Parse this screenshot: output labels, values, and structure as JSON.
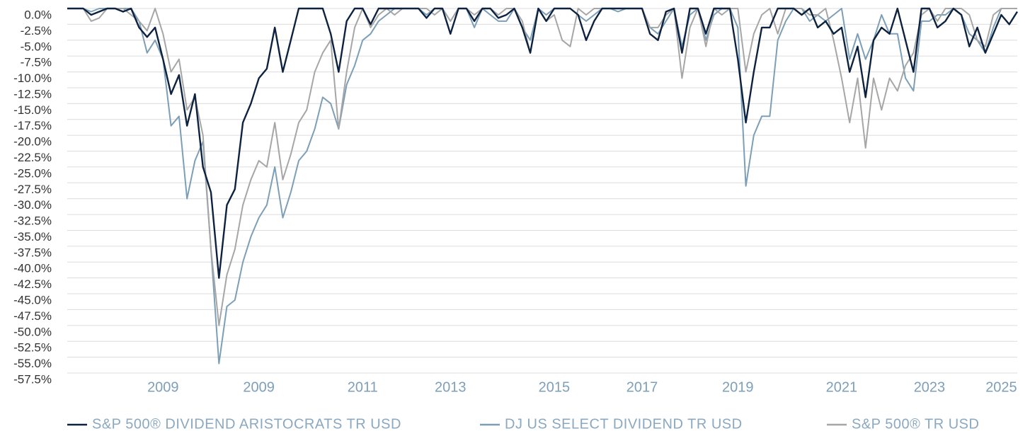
{
  "chart_data": {
    "type": "line",
    "categories": [
      null,
      null,
      null,
      null,
      null,
      null,
      null,
      null,
      null,
      null,
      null,
      null,
      "2009",
      null,
      null,
      null,
      null,
      null,
      null,
      null,
      null,
      null,
      null,
      null,
      "2009",
      null,
      null,
      null,
      null,
      null,
      null,
      null,
      null,
      null,
      null,
      null,
      null,
      "2011",
      null,
      null,
      null,
      null,
      null,
      null,
      null,
      null,
      null,
      null,
      "2013",
      null,
      null,
      null,
      null,
      null,
      null,
      null,
      null,
      null,
      null,
      null,
      null,
      "2015",
      null,
      null,
      null,
      null,
      null,
      null,
      null,
      null,
      null,
      null,
      "2017",
      null,
      null,
      null,
      null,
      null,
      null,
      null,
      null,
      null,
      null,
      null,
      "2019",
      null,
      null,
      null,
      null,
      null,
      null,
      null,
      null,
      null,
      null,
      null,
      null,
      "2021",
      null,
      null,
      null,
      null,
      null,
      null,
      null,
      null,
      null,
      null,
      "2023",
      null,
      null,
      null,
      null,
      null,
      null,
      null,
      null,
      "2025",
      null,
      null
    ],
    "series": [
      {
        "name": "S&P 500® DIVIDEND ARISTOCRATS TR USD",
        "color": "#0d2240",
        "values": [
          0,
          0,
          0,
          -1,
          -0.5,
          0,
          0,
          -0.5,
          0,
          -3,
          -4.5,
          -3,
          -8,
          -13.5,
          -10.5,
          -18.5,
          -13.5,
          -25,
          -29,
          -42.5,
          -31,
          -28.5,
          -18,
          -15,
          -11,
          -9.5,
          -3,
          -10,
          -5,
          0,
          0,
          0,
          0,
          -4,
          -10,
          -2,
          0,
          0,
          -2.5,
          0,
          0,
          0,
          0,
          0,
          0,
          -1.5,
          0,
          0,
          -4,
          0,
          0,
          -2,
          0,
          0,
          -1.5,
          -1,
          0,
          -3,
          -7,
          0,
          -2,
          0,
          0,
          0,
          -1,
          -5,
          -2,
          0,
          0,
          0,
          0,
          0,
          0,
          -4,
          -5,
          -0.5,
          0,
          -7,
          0,
          0,
          -4,
          0,
          0,
          0,
          -8,
          -18,
          -10,
          -3,
          -3,
          0,
          0,
          0,
          -1,
          0,
          -3,
          -2,
          -4,
          -3,
          -10,
          -6,
          -14,
          -5,
          -3,
          -4,
          0,
          -5,
          -10,
          0,
          0,
          -3,
          -2,
          0,
          -1,
          -6,
          -3,
          -7,
          -4,
          -1,
          -2.5,
          -0.5
        ]
      },
      {
        "name": "DJ US SELECT DIVIDEND TR USD",
        "color": "#7c9fb7",
        "values": [
          0,
          0,
          0,
          -0.5,
          0,
          0,
          0,
          0,
          0,
          -2,
          -7,
          -5,
          -8,
          -18.5,
          -17,
          -30,
          -24,
          -21,
          -38,
          -56,
          -47,
          -46,
          -40,
          -36,
          -33,
          -31,
          -25,
          -33,
          -29,
          -24,
          -22.5,
          -19,
          -14,
          -15,
          -19,
          -12,
          -9,
          -5,
          -4,
          -2,
          -1,
          0,
          0,
          0,
          0,
          -1,
          0,
          0,
          -2,
          0,
          0,
          -3,
          0,
          -1,
          -2,
          -2,
          0,
          -3,
          -5,
          0,
          -1,
          0,
          0,
          0,
          -1,
          -2,
          -1,
          0,
          0,
          -0.5,
          0,
          0,
          0,
          -3,
          -4,
          -2,
          0,
          -6,
          -1,
          0,
          -5,
          -1,
          0,
          0,
          -3,
          -28,
          -20,
          -17,
          -17,
          -5,
          -2,
          0,
          0,
          -2,
          -1,
          -2,
          -1,
          0,
          -8,
          -4,
          -8,
          -5,
          -1,
          -4,
          -4,
          -11,
          -13,
          -2,
          -2,
          -1,
          -1,
          0,
          -1,
          -4,
          -5,
          -7,
          -3,
          0,
          0,
          0
        ]
      },
      {
        "name": "S&P 500® TR USD",
        "color": "#a6a6a6",
        "values": [
          0,
          0,
          0,
          -2,
          -1.5,
          0,
          0,
          0,
          -1,
          -2,
          -3.5,
          0,
          -4,
          -10,
          -8,
          -16,
          -14,
          -20,
          -38,
          -50,
          -42,
          -38,
          -31,
          -27,
          -24,
          -25,
          -18,
          -27,
          -23,
          -18,
          -16,
          -10,
          -7,
          -5,
          -19,
          -10,
          -3,
          0,
          -3,
          -1,
          0,
          -1,
          0,
          0,
          0,
          0,
          -1,
          0,
          -2,
          0,
          0,
          -1,
          0,
          0,
          -1,
          0,
          0,
          -2,
          -7,
          0,
          -2,
          -1,
          -5,
          -6,
          0,
          -1,
          0,
          0,
          0,
          0,
          0,
          0,
          0,
          -3,
          -3,
          -1,
          0,
          -11,
          -3,
          0,
          -6,
          0,
          -1,
          0,
          0,
          -10,
          -4,
          -1,
          0,
          -4,
          0,
          0,
          0,
          -1,
          -1,
          0,
          -5,
          -11,
          -18,
          -11,
          -22,
          -11,
          -16,
          -11,
          -13,
          -9,
          -7,
          -1,
          0,
          -2,
          0,
          0,
          0,
          -1,
          -5,
          -6,
          -1,
          0,
          0,
          0
        ]
      }
    ],
    "ylim": [
      -57.5,
      0
    ],
    "yticks": [
      {
        "value": 0,
        "label": "0.0%"
      },
      {
        "value": -2.5,
        "label": "-2.5%"
      },
      {
        "value": -5,
        "label": "-5.0%"
      },
      {
        "value": -7.5,
        "label": "-7.5%"
      },
      {
        "value": -10,
        "label": "-10.0%"
      },
      {
        "value": -12.5,
        "label": "-12.5%"
      },
      {
        "value": -15,
        "label": "-15.0%"
      },
      {
        "value": -17.5,
        "label": "-17.5%"
      },
      {
        "value": -20,
        "label": "-20.0%"
      },
      {
        "value": -22.5,
        "label": "-22.5%"
      },
      {
        "value": -25,
        "label": "-25.0%"
      },
      {
        "value": -27.5,
        "label": "-27.5%"
      },
      {
        "value": -30,
        "label": "-30.0%"
      },
      {
        "value": -32.5,
        "label": "-32.5%"
      },
      {
        "value": -35,
        "label": "-35.0%"
      },
      {
        "value": -37.5,
        "label": "-37.5%"
      },
      {
        "value": -40,
        "label": "-40.0%"
      },
      {
        "value": -42.5,
        "label": "-42.5%"
      },
      {
        "value": -45,
        "label": "-45.0%"
      },
      {
        "value": -47.5,
        "label": "-47.5%"
      },
      {
        "value": -50,
        "label": "-50.0%"
      },
      {
        "value": -52.5,
        "label": "-52.5%"
      },
      {
        "value": -55,
        "label": "-55.0%"
      },
      {
        "value": -57.5,
        "label": "-57.5%"
      }
    ],
    "grid": true,
    "legend": "bottom"
  }
}
